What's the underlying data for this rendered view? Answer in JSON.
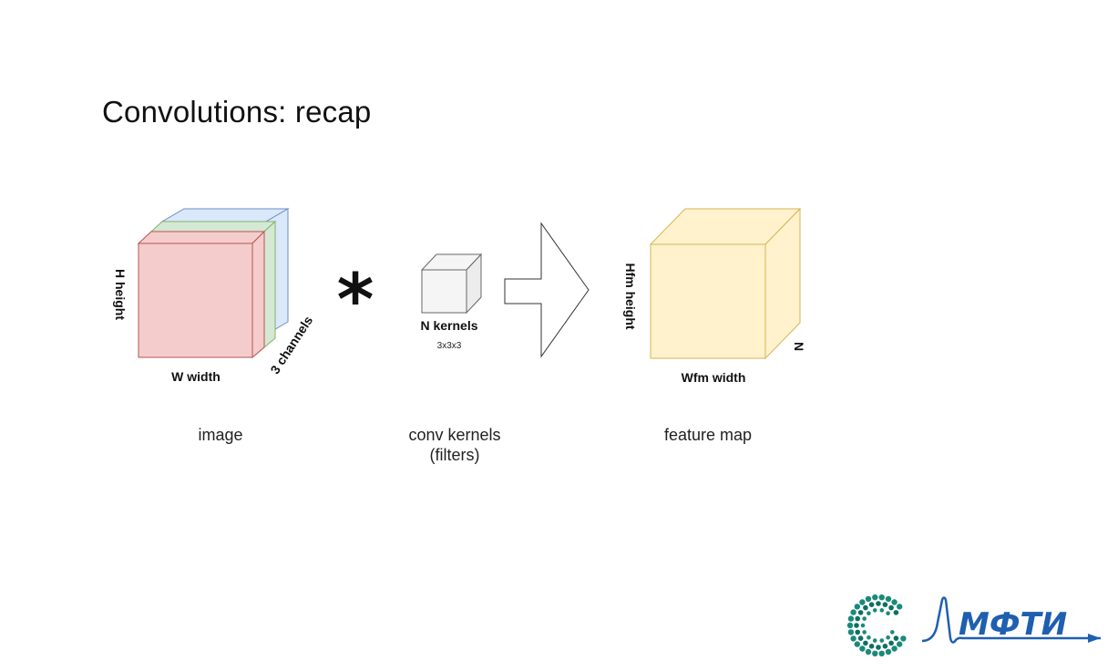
{
  "slide": {
    "title": "Convolutions: recap"
  },
  "colors": {
    "image_red": "#f4cccc",
    "image_red_edge": "#b85450",
    "image_green": "#d5e8d4",
    "image_green_edge": "#82b366",
    "image_blue": "#dae8fc",
    "image_blue_edge": "#6c8ebf",
    "kernel_fill": "#f5f5f5",
    "kernel_edge": "#666666",
    "feature_fill": "#fff2cc",
    "feature_edge": "#d6b656",
    "logo_teal": "#1a8a7a",
    "logo_blue": "#1f5fb0"
  },
  "diagram": {
    "image": {
      "height_label": "H height",
      "width_label": "W width",
      "channels_label": "3 channels",
      "caption": "image"
    },
    "operator": "*",
    "kernels": {
      "label": "N kernels",
      "size": "3x3x3",
      "caption_line1": "conv kernels",
      "caption_line2": "(filters)"
    },
    "feature_map": {
      "height_label": "Hfm height",
      "width_label": "Wfm width",
      "depth_label": "N",
      "caption": "feature map"
    }
  },
  "logo": {
    "text": "МФТИ"
  }
}
